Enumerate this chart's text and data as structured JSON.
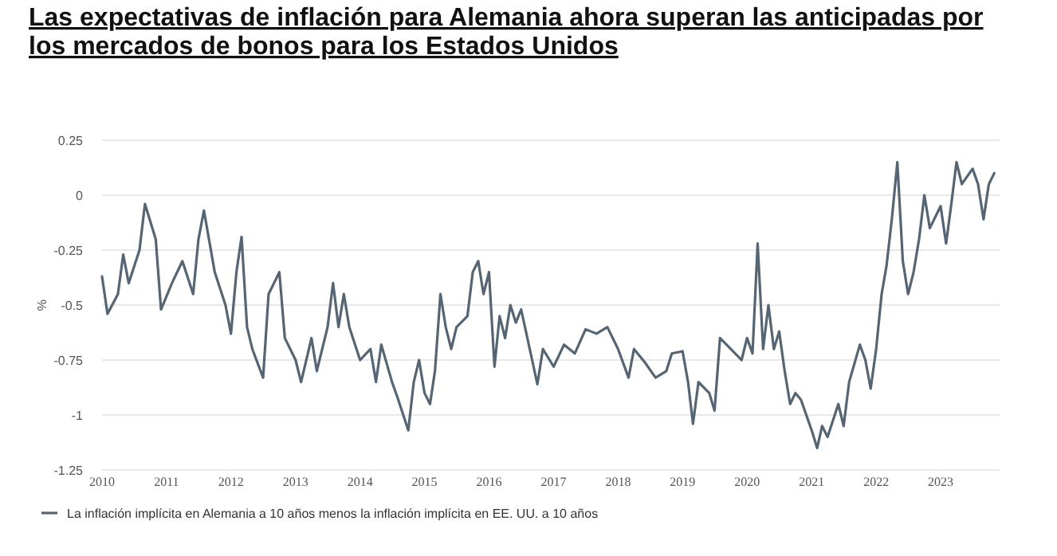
{
  "chart_data": {
    "type": "line",
    "title": "Las expectativas de inflación para Alemania ahora superan las anticipadas por los mercados de bonos para los Estados Unidos",
    "ylabel": "%",
    "x": [
      "2010-01",
      "2010-02",
      "2010-04",
      "2010-05",
      "2010-06",
      "2010-08",
      "2010-09",
      "2010-11",
      "2010-12",
      "2011-02",
      "2011-04",
      "2011-06",
      "2011-07",
      "2011-08",
      "2011-10",
      "2011-12",
      "2012-01",
      "2012-02",
      "2012-03",
      "2012-04",
      "2012-05",
      "2012-07",
      "2012-08",
      "2012-10",
      "2012-11",
      "2013-01",
      "2013-02",
      "2013-04",
      "2013-05",
      "2013-07",
      "2013-08",
      "2013-09",
      "2013-10",
      "2013-11",
      "2014-01",
      "2014-03",
      "2014-04",
      "2014-05",
      "2014-07",
      "2014-08",
      "2014-10",
      "2014-11",
      "2014-12",
      "2015-01",
      "2015-02",
      "2015-03",
      "2015-04",
      "2015-05",
      "2015-06",
      "2015-07",
      "2015-09",
      "2015-10",
      "2015-11",
      "2015-12",
      "2016-01",
      "2016-02",
      "2016-03",
      "2016-04",
      "2016-05",
      "2016-06",
      "2016-07",
      "2016-10",
      "2016-11",
      "2017-01",
      "2017-03",
      "2017-05",
      "2017-07",
      "2017-09",
      "2017-11",
      "2018-01",
      "2018-03",
      "2018-04",
      "2018-06",
      "2018-08",
      "2018-10",
      "2018-11",
      "2019-01",
      "2019-02",
      "2019-03",
      "2019-04",
      "2019-06",
      "2019-07",
      "2019-08",
      "2019-10",
      "2019-12",
      "2020-01",
      "2020-02",
      "2020-03",
      "2020-04",
      "2020-05",
      "2020-06",
      "2020-07",
      "2020-08",
      "2020-09",
      "2020-10",
      "2020-11",
      "2021-01",
      "2021-02",
      "2021-03",
      "2021-04",
      "2021-06",
      "2021-07",
      "2021-08",
      "2021-10",
      "2021-11",
      "2021-12",
      "2022-01",
      "2022-02",
      "2022-03",
      "2022-04",
      "2022-05",
      "2022-06",
      "2022-07",
      "2022-08",
      "2022-09",
      "2022-10",
      "2022-11",
      "2023-01",
      "2023-02",
      "2023-03",
      "2023-04",
      "2023-05",
      "2023-07",
      "2023-08",
      "2023-09",
      "2023-10",
      "2023-11"
    ],
    "series": [
      {
        "name": "La inflación implícita en Alemania a 10 años menos la inflación implícita en EE. UU. a 10 años",
        "color": "#566573",
        "values": [
          -0.37,
          -0.54,
          -0.45,
          -0.27,
          -0.4,
          -0.25,
          -0.04,
          -0.2,
          -0.52,
          -0.4,
          -0.3,
          -0.45,
          -0.2,
          -0.07,
          -0.35,
          -0.5,
          -0.63,
          -0.35,
          -0.19,
          -0.6,
          -0.7,
          -0.83,
          -0.45,
          -0.35,
          -0.65,
          -0.75,
          -0.85,
          -0.65,
          -0.8,
          -0.6,
          -0.4,
          -0.6,
          -0.45,
          -0.6,
          -0.75,
          -0.7,
          -0.85,
          -0.68,
          -0.85,
          -0.92,
          -1.07,
          -0.85,
          -0.75,
          -0.9,
          -0.95,
          -0.8,
          -0.45,
          -0.6,
          -0.7,
          -0.6,
          -0.55,
          -0.35,
          -0.3,
          -0.45,
          -0.35,
          -0.78,
          -0.55,
          -0.65,
          -0.5,
          -0.58,
          -0.52,
          -0.86,
          -0.7,
          -0.78,
          -0.68,
          -0.72,
          -0.61,
          -0.63,
          -0.6,
          -0.7,
          -0.83,
          -0.7,
          -0.76,
          -0.83,
          -0.8,
          -0.72,
          -0.71,
          -0.85,
          -1.04,
          -0.85,
          -0.9,
          -0.98,
          -0.65,
          -0.7,
          -0.75,
          -0.65,
          -0.72,
          -0.22,
          -0.7,
          -0.5,
          -0.7,
          -0.62,
          -0.8,
          -0.95,
          -0.9,
          -0.93,
          -1.07,
          -1.15,
          -1.05,
          -1.1,
          -0.95,
          -1.05,
          -0.85,
          -0.68,
          -0.75,
          -0.88,
          -0.7,
          -0.45,
          -0.32,
          -0.1,
          0.15,
          -0.3,
          -0.45,
          -0.35,
          -0.2,
          0.0,
          -0.15,
          -0.05,
          -0.22,
          -0.05,
          0.15,
          0.05,
          0.12,
          0.05,
          -0.11,
          0.05,
          0.1
        ]
      }
    ],
    "xlim": [
      "2010-01",
      "2023-12"
    ],
    "xticks": [
      "2010",
      "2011",
      "2012",
      "2013",
      "2014",
      "2015",
      "2016",
      "2017",
      "2018",
      "2019",
      "2020",
      "2021",
      "2022",
      "2023"
    ],
    "ylim": [
      -1.25,
      0.25
    ],
    "yticks": [
      0.25,
      0,
      -0.25,
      -0.5,
      -0.75,
      -1,
      -1.25
    ],
    "grid": "y",
    "legend": "bottom left",
    "line_style": "solid",
    "marker": "none"
  }
}
